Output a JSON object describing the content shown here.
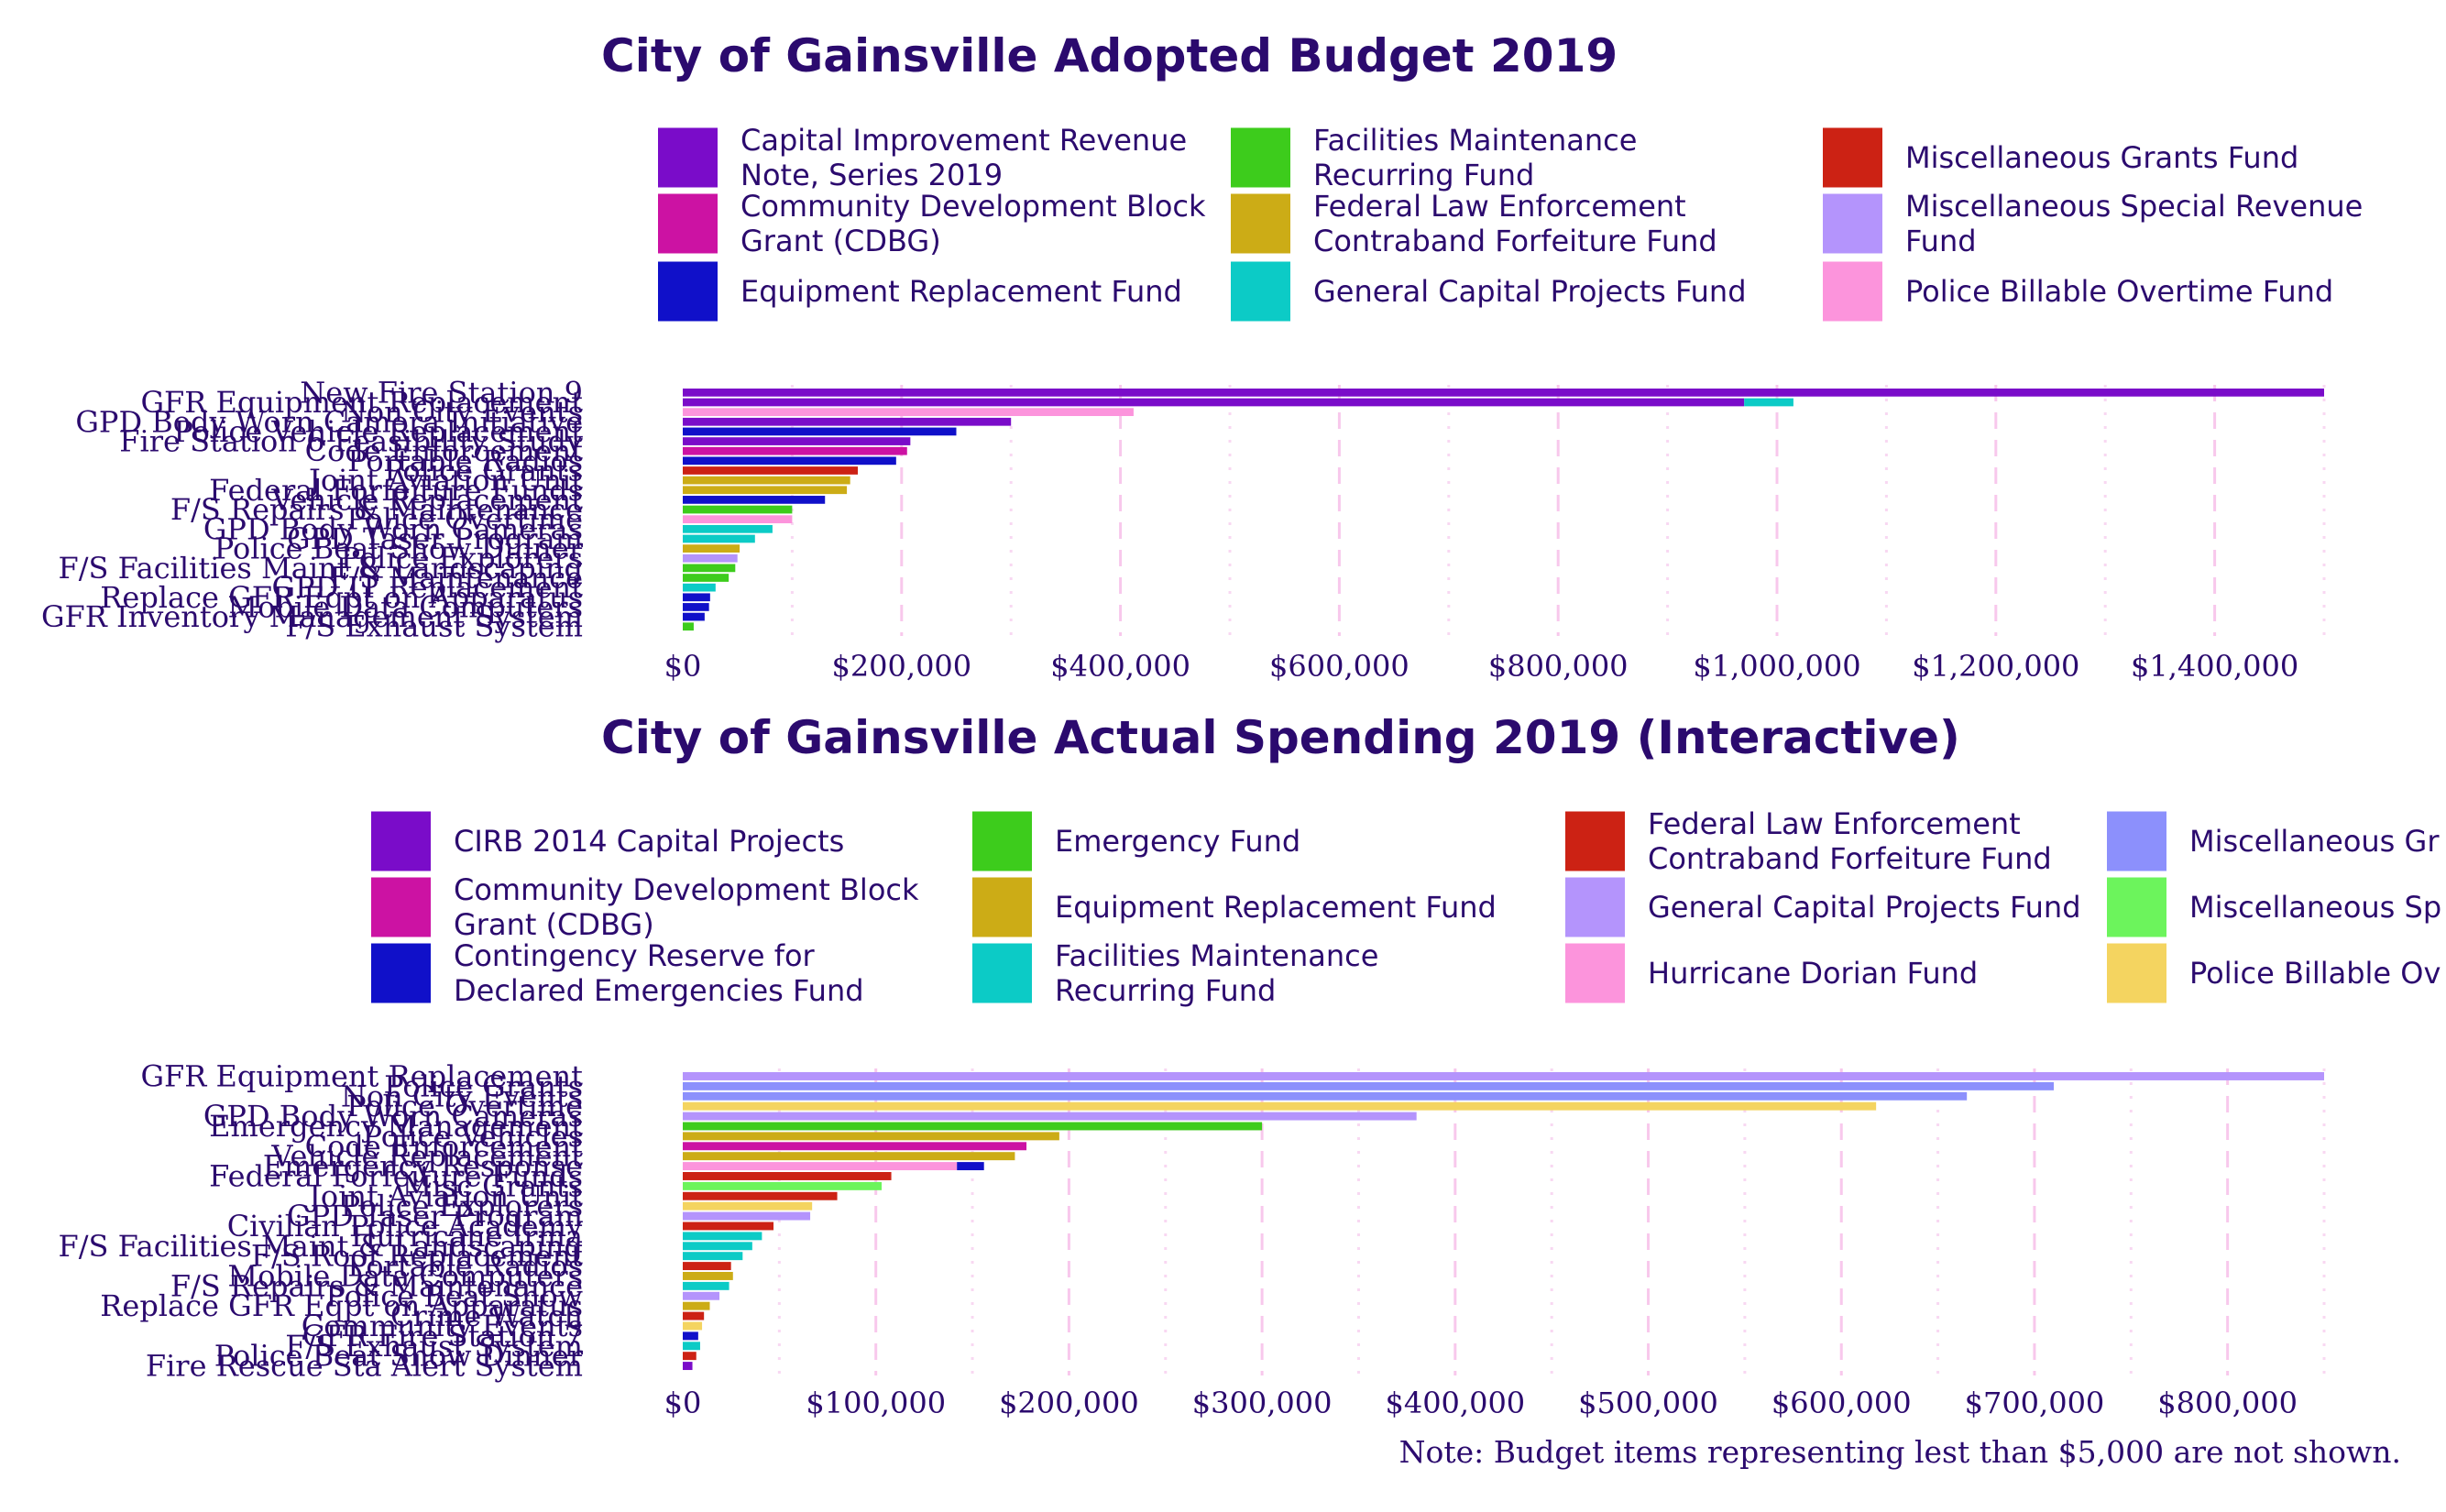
{
  "note": "Note: Budget items representing lest than $5,000 are not shown.",
  "chart_data": [
    {
      "type": "bar",
      "orientation": "horizontal",
      "stacked": true,
      "title": "City of Gainsville Adopted Budget 2019",
      "xlim": [
        0,
        1500000
      ],
      "x_ticks": [
        0,
        200000,
        400000,
        600000,
        800000,
        1000000,
        1200000,
        1400000
      ],
      "x_tick_labels": [
        "$0",
        "$200,000",
        "$400,000",
        "$600,000",
        "$800,000",
        "$1,000,000",
        "$1,200,000",
        "$1,400,000"
      ],
      "legend": [
        {
          "label": "Capital Improvement Revenue Note, Series 2019",
          "color": "#7a0cc9"
        },
        {
          "label": "Community Development Block Grant (CDBG)",
          "color": "#cc12a3"
        },
        {
          "label": "Equipment Replacement Fund",
          "color": "#1010c9"
        },
        {
          "label": "Facilities Maintenance Recurring Fund",
          "color": "#3dcc1c"
        },
        {
          "label": "Federal Law Enforcement Contraband Forfeiture Fund",
          "color": "#ccac16"
        },
        {
          "label": "General Capital Projects Fund",
          "color": "#0ccbc6"
        },
        {
          "label": "Miscellaneous Grants Fund",
          "color": "#cc2214"
        },
        {
          "label": "Miscellaneous Special Revenue Fund",
          "color": "#b494fc"
        },
        {
          "label": "Police Billable Overtime Fund",
          "color": "#fc94dc"
        }
      ],
      "items": [
        {
          "label": "New Fire Station 9",
          "segments": [
            {
              "fund": 0,
              "value": 1500000
            }
          ]
        },
        {
          "label": "GFR Equipment Replacement",
          "segments": [
            {
              "fund": 0,
              "value": 970000
            },
            {
              "fund": 5,
              "value": 45000
            }
          ]
        },
        {
          "label": "Non City Events",
          "segments": [
            {
              "fund": 8,
              "value": 412000
            }
          ]
        },
        {
          "label": "GPD Body Worn Camera Initiative",
          "segments": [
            {
              "fund": 0,
              "value": 300000
            }
          ]
        },
        {
          "label": "Police Vehicle Replacement",
          "segments": [
            {
              "fund": 2,
              "value": 250000
            }
          ]
        },
        {
          "label": "Fire Station 6 Feasibility Study",
          "segments": [
            {
              "fund": 0,
              "value": 208000
            }
          ]
        },
        {
          "label": "Code Enforcement",
          "segments": [
            {
              "fund": 1,
              "value": 205000
            }
          ]
        },
        {
          "label": "Portable Radios",
          "segments": [
            {
              "fund": 2,
              "value": 195000
            }
          ]
        },
        {
          "label": "Police Grants",
          "segments": [
            {
              "fund": 6,
              "value": 160000
            }
          ]
        },
        {
          "label": "Joint Aviation Unit",
          "segments": [
            {
              "fund": 4,
              "value": 153000
            }
          ]
        },
        {
          "label": "Federal Forfeiture Funds",
          "segments": [
            {
              "fund": 4,
              "value": 150000
            }
          ]
        },
        {
          "label": "Vehicle Replacement",
          "segments": [
            {
              "fund": 2,
              "value": 130000
            }
          ]
        },
        {
          "label": "F/S Repairs & Maintenance",
          "segments": [
            {
              "fund": 3,
              "value": 100000
            }
          ]
        },
        {
          "label": "Police Overtime",
          "segments": [
            {
              "fund": 8,
              "value": 100000
            }
          ]
        },
        {
          "label": "GPD Body Worn Cameras",
          "segments": [
            {
              "fund": 5,
              "value": 82000
            }
          ]
        },
        {
          "label": "GPD Taser Program",
          "segments": [
            {
              "fund": 5,
              "value": 66000
            }
          ]
        },
        {
          "label": "Police Beat Show Dinner",
          "segments": [
            {
              "fund": 4,
              "value": 52000
            }
          ]
        },
        {
          "label": "Police Explorers",
          "segments": [
            {
              "fund": 7,
              "value": 50000
            }
          ]
        },
        {
          "label": "F/S Facilities Maint & Landscaping",
          "segments": [
            {
              "fund": 3,
              "value": 48000
            }
          ]
        },
        {
          "label": "F/S Maintenance",
          "segments": [
            {
              "fund": 3,
              "value": 42000
            }
          ]
        },
        {
          "label": "GPD IT Replacement",
          "segments": [
            {
              "fund": 5,
              "value": 30000
            }
          ]
        },
        {
          "label": "Replace GFR Eqpt on Apparatus",
          "segments": [
            {
              "fund": 2,
              "value": 25000
            }
          ]
        },
        {
          "label": "Mobile Data Computers",
          "segments": [
            {
              "fund": 2,
              "value": 24000
            }
          ]
        },
        {
          "label": "GFR Inventory Management System",
          "segments": [
            {
              "fund": 2,
              "value": 20000
            }
          ]
        },
        {
          "label": "F/S Exhaust System",
          "segments": [
            {
              "fund": 3,
              "value": 10000
            }
          ]
        }
      ]
    },
    {
      "type": "bar",
      "orientation": "horizontal",
      "stacked": true,
      "title": "City of Gainsville Actual Spending 2019 (Interactive)",
      "xlim": [
        0,
        850000
      ],
      "x_ticks": [
        0,
        100000,
        200000,
        300000,
        400000,
        500000,
        600000,
        700000,
        800000
      ],
      "x_tick_labels": [
        "$0",
        "$100,000",
        "$200,000",
        "$300,000",
        "$400,000",
        "$500,000",
        "$600,000",
        "$700,000",
        "$800,000"
      ],
      "legend": [
        {
          "label": "CIRB 2014 Capital Projects",
          "color": "#7a0cc9"
        },
        {
          "label": "Community Development Block Grant (CDBG)",
          "color": "#cc12a3"
        },
        {
          "label": "Contingency Reserve for Declared Emergencies Fund",
          "color": "#1010c9"
        },
        {
          "label": "Emergency Fund",
          "color": "#3dcc1c"
        },
        {
          "label": "Equipment Replacement Fund",
          "color": "#ccac16"
        },
        {
          "label": "Facilities Maintenance Recurring Fund",
          "color": "#0ccbc6"
        },
        {
          "label": "Federal Law Enforcement Contraband Forfeiture Fund",
          "color": "#cc2214"
        },
        {
          "label": "General Capital Projects Fund",
          "color": "#b494fc"
        },
        {
          "label": "Hurricane Dorian Fund",
          "color": "#fc94dc"
        },
        {
          "label": "Miscellaneous Gr",
          "color": "#8c90fc"
        },
        {
          "label": "Miscellaneous Sp Fund",
          "color": "#6cf45c"
        },
        {
          "label": "Police Billable Ov",
          "color": "#f4d460"
        }
      ],
      "items": [
        {
          "label": "GFR Equipment Replacement",
          "segments": [
            {
              "fund": 7,
              "value": 850000
            }
          ]
        },
        {
          "label": "Police Grants",
          "segments": [
            {
              "fund": 9,
              "value": 710000
            }
          ]
        },
        {
          "label": "Non City Events",
          "segments": [
            {
              "fund": 9,
              "value": 665000
            }
          ]
        },
        {
          "label": "Police Overtime",
          "segments": [
            {
              "fund": 11,
              "value": 618000
            }
          ]
        },
        {
          "label": "GPD Body Worn Cameras",
          "segments": [
            {
              "fund": 7,
              "value": 380000
            }
          ]
        },
        {
          "label": "Emergency Management",
          "segments": [
            {
              "fund": 3,
              "value": 300000
            }
          ]
        },
        {
          "label": "Police Vehicles",
          "segments": [
            {
              "fund": 4,
              "value": 195000
            }
          ]
        },
        {
          "label": "Code Enforcement",
          "segments": [
            {
              "fund": 1,
              "value": 178000
            }
          ]
        },
        {
          "label": "Vehicle Replacement",
          "segments": [
            {
              "fund": 4,
              "value": 172000
            }
          ]
        },
        {
          "label": "Emergency Response",
          "segments": [
            {
              "fund": 8,
              "value": 142000
            },
            {
              "fund": 2,
              "value": 14000
            }
          ]
        },
        {
          "label": "Federal Forfeiture Funds",
          "segments": [
            {
              "fund": 6,
              "value": 108000
            }
          ]
        },
        {
          "label": "Misc Grants",
          "segments": [
            {
              "fund": 10,
              "value": 103000
            }
          ]
        },
        {
          "label": "Joint Aviation Unit",
          "segments": [
            {
              "fund": 6,
              "value": 80000
            }
          ]
        },
        {
          "label": "Police Explorers",
          "segments": [
            {
              "fund": 11,
              "value": 67000
            }
          ]
        },
        {
          "label": "GPD Taser Program",
          "segments": [
            {
              "fund": 7,
              "value": 66000
            }
          ]
        },
        {
          "label": "Civilian Police Academy",
          "segments": [
            {
              "fund": 6,
              "value": 47000
            }
          ]
        },
        {
          "label": "Hurricane Irma",
          "segments": [
            {
              "fund": 5,
              "value": 41000
            }
          ]
        },
        {
          "label": "F/S Facilities Maint & Landscaping",
          "segments": [
            {
              "fund": 5,
              "value": 36000
            }
          ]
        },
        {
          "label": "F/S Roof Replacement",
          "segments": [
            {
              "fund": 5,
              "value": 31000
            }
          ]
        },
        {
          "label": "Portable Radios",
          "segments": [
            {
              "fund": 6,
              "value": 25000
            }
          ]
        },
        {
          "label": "Mobile Data Computers",
          "segments": [
            {
              "fund": 4,
              "value": 26000
            }
          ]
        },
        {
          "label": "F/S Repairs & Maintenance",
          "segments": [
            {
              "fund": 5,
              "value": 24000
            }
          ]
        },
        {
          "label": "Police Beat Show",
          "segments": [
            {
              "fund": 7,
              "value": 19000
            }
          ]
        },
        {
          "label": "Replace GFR Eqpt on Apparatus",
          "segments": [
            {
              "fund": 4,
              "value": 14000
            }
          ]
        },
        {
          "label": "Crime Watch",
          "segments": [
            {
              "fund": 6,
              "value": 11000
            }
          ]
        },
        {
          "label": "Community Events",
          "segments": [
            {
              "fund": 11,
              "value": 10000
            }
          ]
        },
        {
          "label": "GFR Fire Station 7",
          "segments": [
            {
              "fund": 2,
              "value": 8000
            }
          ]
        },
        {
          "label": "F/S Exhaust System",
          "segments": [
            {
              "fund": 5,
              "value": 9000
            }
          ]
        },
        {
          "label": "Police Beat Show Dinner",
          "segments": [
            {
              "fund": 6,
              "value": 7000
            }
          ]
        },
        {
          "label": "Fire Rescue Sta Alert System",
          "segments": [
            {
              "fund": 0,
              "value": 5000
            }
          ]
        }
      ]
    }
  ]
}
